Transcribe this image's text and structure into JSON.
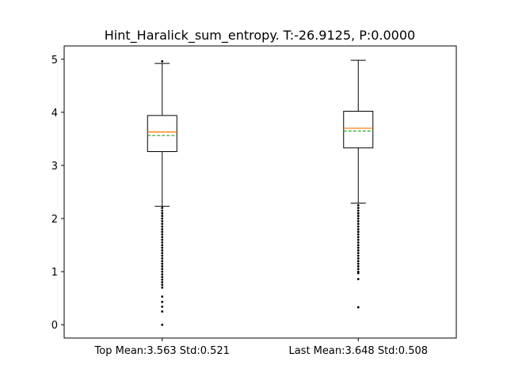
{
  "chart_data": {
    "type": "box",
    "title": "Hint_Haralick_sum_entropy. T:-26.9125, P:0.0000",
    "xlabel": "",
    "ylabel": "",
    "ylim": [
      -0.25,
      5.25
    ],
    "yticks": [
      0,
      1,
      2,
      3,
      4,
      5
    ],
    "categories": [
      "Top Mean:3.563 Std:0.521",
      "Last Mean:3.648 Std:0.508"
    ],
    "boxes": [
      {
        "whisker_low": 2.23,
        "q1": 3.26,
        "median": 3.63,
        "mean": 3.563,
        "q3": 3.94,
        "whisker_high": 4.92,
        "outliers_high": [
          4.96
        ],
        "outliers_low": [
          2.2,
          2.15,
          2.1,
          2.05,
          2.0,
          1.95,
          1.9,
          1.85,
          1.8,
          1.75,
          1.7,
          1.65,
          1.6,
          1.55,
          1.5,
          1.45,
          1.4,
          1.35,
          1.3,
          1.25,
          1.2,
          1.15,
          1.1,
          1.05,
          1.0,
          0.95,
          0.9,
          0.85,
          0.8,
          0.75,
          0.7,
          0.53,
          0.43,
          0.34,
          0.25,
          0.0
        ]
      },
      {
        "whisker_low": 2.29,
        "q1": 3.33,
        "median": 3.7,
        "mean": 3.648,
        "q3": 4.02,
        "whisker_high": 4.98,
        "outliers_high": [],
        "outliers_low": [
          2.25,
          2.2,
          2.15,
          2.1,
          2.05,
          2.0,
          1.95,
          1.9,
          1.85,
          1.8,
          1.75,
          1.7,
          1.65,
          1.6,
          1.55,
          1.5,
          1.45,
          1.4,
          1.35,
          1.3,
          1.25,
          1.2,
          1.15,
          1.1,
          1.05,
          1.0,
          0.97,
          0.86,
          0.33
        ]
      }
    ],
    "grid": false,
    "legend": "none",
    "colors": {
      "median": "#ff7f0e",
      "mean": "#2ca02c",
      "box": "#000000"
    }
  }
}
